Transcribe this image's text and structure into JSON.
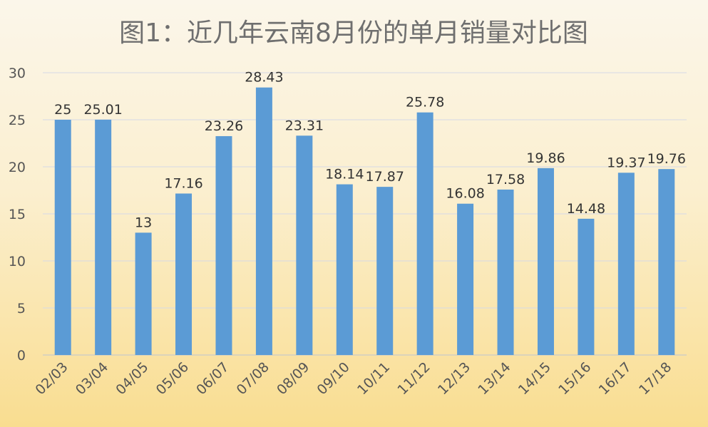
{
  "chart_data": {
    "type": "bar",
    "title": "图1：近几年云南8月份的单月销量对比图",
    "categories": [
      "02/03",
      "03/04",
      "04/05",
      "05/06",
      "06/07",
      "07/08",
      "08/09",
      "09/10",
      "10/11",
      "11/12",
      "12/13",
      "13/14",
      "14/15",
      "15/16",
      "16/17",
      "17/18"
    ],
    "values": [
      25,
      25.01,
      13,
      17.16,
      23.26,
      28.43,
      23.31,
      18.14,
      17.87,
      25.78,
      16.08,
      17.58,
      19.86,
      14.48,
      19.37,
      19.76
    ],
    "data_labels": [
      "25",
      "25.01",
      "13",
      "17.16",
      "23.26",
      "28.43",
      "23.31",
      "18.14",
      "17.87",
      "25.78",
      "16.08",
      "17.58",
      "19.86",
      "14.48",
      "19.37",
      "19.76"
    ],
    "ylim": [
      0,
      30
    ],
    "yticks": [
      0,
      5,
      10,
      15,
      20,
      25,
      30
    ],
    "grid": true,
    "legend": "none",
    "xlabel": "",
    "ylabel": "",
    "bar_color": "#5b9bd5"
  }
}
